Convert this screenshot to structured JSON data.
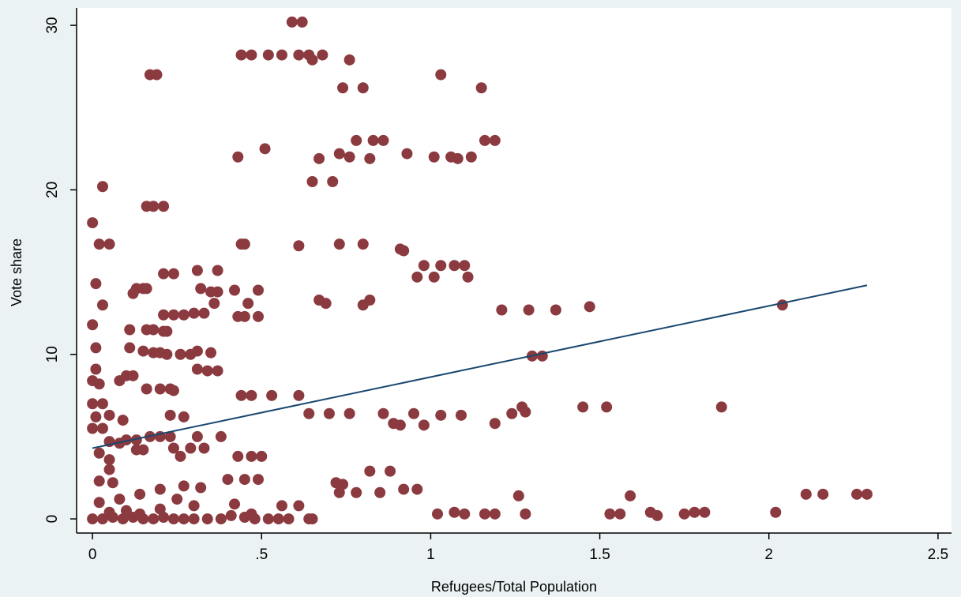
{
  "chart_data": {
    "type": "scatter",
    "xlabel": "Refugees/Total Population",
    "ylabel": "Vote share",
    "xlim": [
      -0.047,
      2.54
    ],
    "ylim": [
      -0.86,
      31.06
    ],
    "xticks": [
      0,
      {
        "value": 0.5,
        "label": ".5"
      },
      1,
      {
        "value": 1.5,
        "label": "1.5"
      },
      2,
      2.5
    ],
    "yticks": [
      0,
      10,
      20,
      30
    ],
    "grid": false,
    "series": [
      {
        "type": "scatter",
        "color": "#8b3a3f",
        "x": [
          0.59,
          0.62,
          0.44,
          0.47,
          0.52,
          0.56,
          0.61,
          0.64,
          0.68,
          0.76,
          0.65,
          0.17,
          0.19,
          1.03,
          0.74,
          0.8,
          1.15,
          0.78,
          0.83,
          0.86,
          1.16,
          1.19,
          0.43,
          0.51,
          0.67,
          0.73,
          0.76,
          0.82,
          0.93,
          1.01,
          1.06,
          1.08,
          1.12,
          0.03,
          0.65,
          0.71,
          0.16,
          0.18,
          0.21,
          0,
          0.02,
          0.05,
          0.44,
          0.45,
          0.61,
          0.73,
          0.8,
          0.91,
          0.92,
          0.98,
          1.03,
          1.07,
          1.1,
          0.21,
          0.24,
          0.31,
          0.37,
          0.96,
          1.01,
          1.11,
          0.01,
          0.13,
          0.15,
          0.16,
          0.32,
          0.35,
          0.37,
          0.42,
          0.49,
          0.03,
          0.12,
          0.36,
          0.46,
          0.67,
          0.69,
          0.8,
          0.82,
          1.21,
          1.29,
          1.37,
          1.47,
          2.04,
          0,
          0.11,
          0.16,
          0.18,
          0.21,
          0.22,
          0.21,
          0.24,
          0.27,
          0.3,
          0.33,
          0.43,
          0.45,
          0.49,
          0.01,
          0.11,
          0.15,
          0.18,
          0.2,
          0.22,
          0.26,
          0.29,
          0.31,
          0.35,
          1.3,
          1.33,
          0.01,
          0.31,
          0.34,
          0.37,
          0,
          0.02,
          0.08,
          0.1,
          0.12,
          0.16,
          0.2,
          0.23,
          0.24,
          0.44,
          0.47,
          0.53,
          0.61,
          1.45,
          1.52,
          1.86,
          0,
          0.03,
          0.05,
          0.01,
          0.23,
          0.27,
          0.64,
          0.7,
          0.76,
          0.86,
          0.89,
          0.91,
          0.95,
          0.98,
          1.03,
          1.09,
          1.19,
          1.24,
          1.27,
          1.28,
          0.09,
          0,
          0.03,
          0.05,
          0.08,
          0.1,
          0.13,
          0.17,
          0.2,
          0.23,
          0.31,
          0.38,
          0.02,
          0.05,
          0.13,
          0.15,
          0.24,
          0.29,
          0.33,
          0.26,
          0.05,
          0.43,
          0.47,
          0.5,
          0.82,
          0.88,
          0.02,
          0.06,
          0.27,
          0.32,
          0.4,
          0.45,
          0.49,
          0.72,
          0.74,
          0.73,
          0.78,
          0.85,
          0.92,
          0.96,
          1.26,
          1.59,
          2.11,
          2.16,
          2.26,
          2.29,
          0.02,
          0.08,
          0.14,
          0.2,
          0.25,
          0.3,
          0.42,
          0.56,
          0.61,
          1.02,
          1.07,
          1.1,
          1.16,
          1.19,
          1.28,
          1.53,
          1.56,
          1.65,
          1.67,
          1.75,
          1.78,
          1.81,
          2.02,
          0,
          0.03,
          0.06,
          0.09,
          0.12,
          0.15,
          0.18,
          0.21,
          0.24,
          0.27,
          0.3,
          0.34,
          0.38,
          0.41,
          0.45,
          0.48,
          0.52,
          0.55,
          0.58,
          0.64,
          0.65,
          0.05,
          0.1,
          0.14,
          0.2,
          0.47
        ],
        "values": [
          30.2,
          30.2,
          28.2,
          28.2,
          28.2,
          28.2,
          28.2,
          28.2,
          28.2,
          27.9,
          27.9,
          27,
          27,
          27,
          26.2,
          26.2,
          26.2,
          23,
          23,
          23,
          23,
          23,
          22,
          22.5,
          21.9,
          22.2,
          22,
          21.9,
          22.2,
          22,
          22,
          21.9,
          22,
          20.2,
          20.5,
          20.5,
          19,
          19,
          19,
          18,
          16.7,
          16.7,
          16.7,
          16.7,
          16.6,
          16.7,
          16.7,
          16.4,
          16.3,
          15.4,
          15.4,
          15.4,
          15.4,
          14.9,
          14.9,
          15.1,
          15.1,
          14.7,
          14.7,
          14.7,
          14.3,
          14,
          14,
          14,
          14,
          13.8,
          13.8,
          13.9,
          13.9,
          13,
          13.7,
          13.1,
          13.1,
          13.3,
          13.1,
          13,
          13.3,
          12.7,
          12.7,
          12.7,
          12.9,
          13,
          11.8,
          11.5,
          11.5,
          11.5,
          11.4,
          11.4,
          12.4,
          12.4,
          12.4,
          12.5,
          12.5,
          12.3,
          12.3,
          12.3,
          10.4,
          10.4,
          10.2,
          10.1,
          10.1,
          10,
          10,
          10,
          10.2,
          10.1,
          9.9,
          9.9,
          9.1,
          9.1,
          9,
          9,
          8.4,
          8.2,
          8.4,
          8.7,
          8.7,
          7.9,
          7.9,
          7.9,
          7.8,
          7.5,
          7.5,
          7.5,
          7.5,
          6.8,
          6.8,
          6.8,
          7,
          7,
          6.3,
          6.2,
          6.3,
          6.2,
          6.4,
          6.4,
          6.4,
          6.4,
          5.8,
          5.7,
          6.4,
          5.7,
          6.3,
          6.3,
          5.8,
          6.4,
          6.8,
          6.5,
          6,
          5.5,
          5.5,
          4.7,
          4.6,
          4.8,
          4.8,
          5,
          5,
          5,
          5,
          5,
          4,
          3.6,
          4.2,
          4.2,
          4.3,
          4.3,
          4.3,
          3.8,
          3,
          3.8,
          3.8,
          3.8,
          2.9,
          2.9,
          2.3,
          2.2,
          2,
          1.9,
          2.4,
          2.4,
          2.4,
          2.2,
          2.1,
          1.6,
          1.6,
          1.6,
          1.8,
          1.8,
          1.4,
          1.4,
          1.5,
          1.5,
          1.5,
          1.5,
          1,
          1.2,
          1.5,
          1.8,
          1.2,
          0.8,
          0.9,
          0.8,
          0.8,
          0.3,
          0.4,
          0.3,
          0.3,
          0.3,
          0.3,
          0.3,
          0.3,
          0.4,
          0.2,
          0.3,
          0.4,
          0.4,
          0.4,
          0,
          0,
          0.1,
          0,
          0.1,
          0,
          0,
          0.1,
          0,
          0,
          0,
          0,
          0,
          0.2,
          0.1,
          0,
          0,
          0,
          0,
          0,
          0,
          0.4,
          0.5,
          0.3,
          0.6,
          0.3
        ]
      },
      {
        "type": "line",
        "color": "#1a476f",
        "x": [
          0,
          2.29
        ],
        "values": [
          4.3,
          14.2
        ]
      }
    ]
  }
}
